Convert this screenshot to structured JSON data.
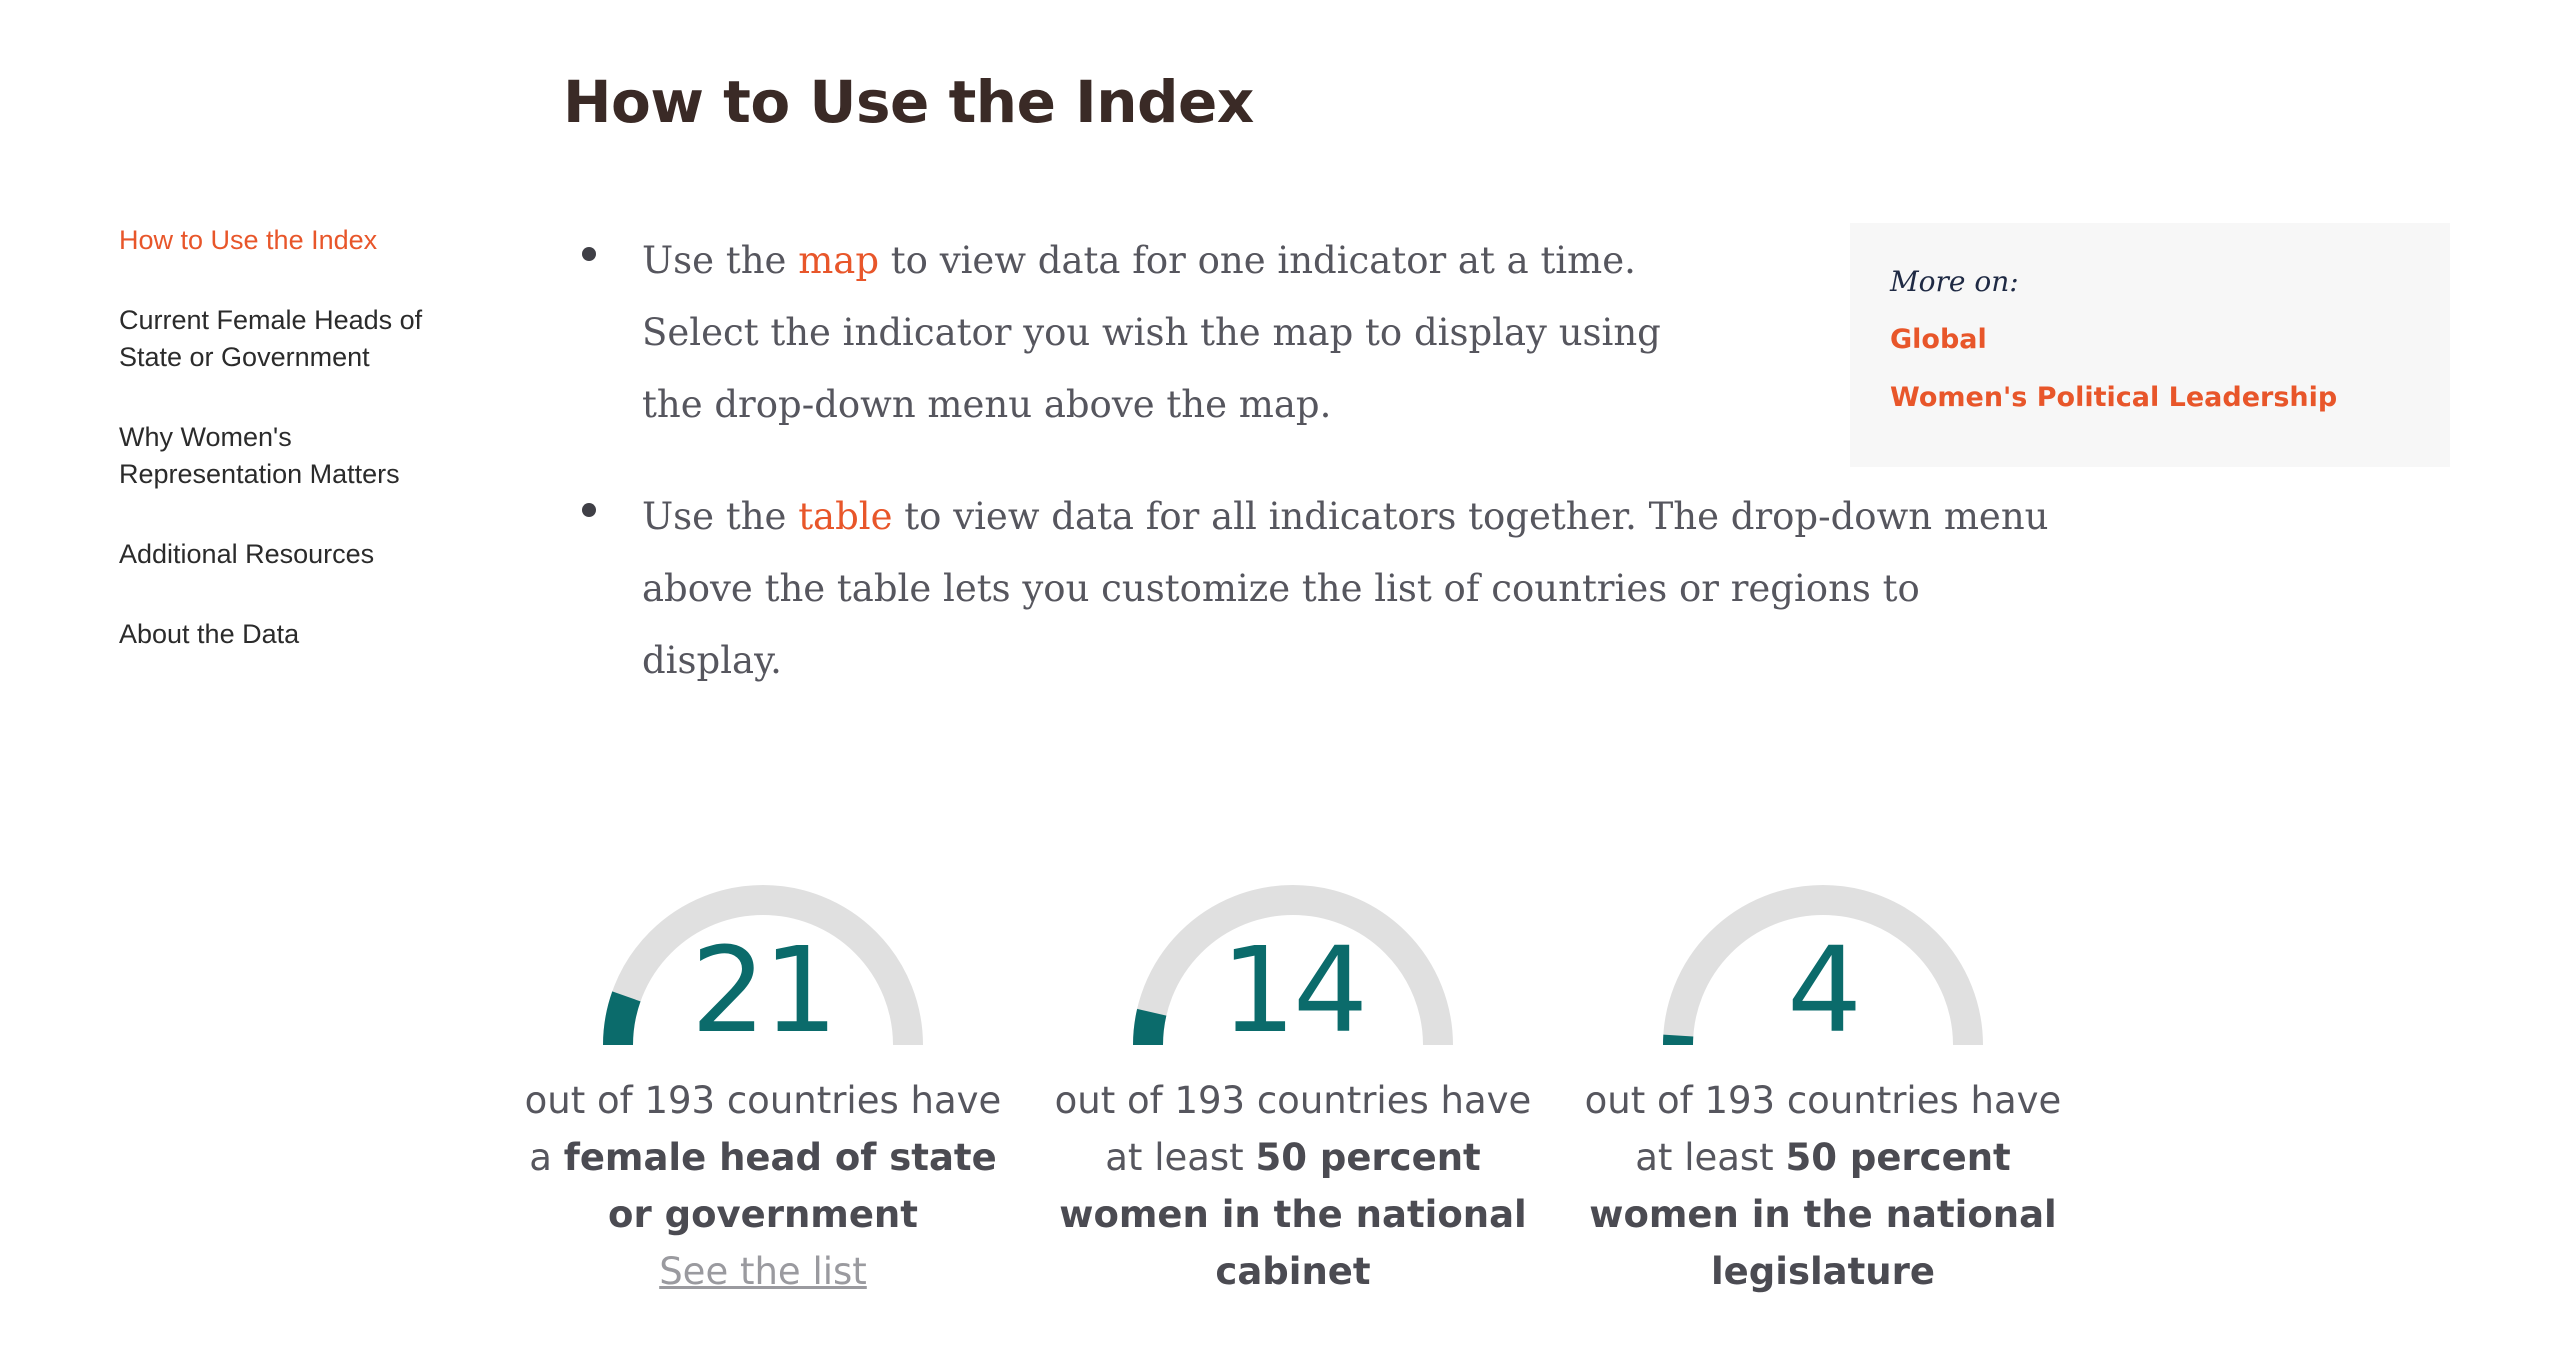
{
  "page": {
    "title": "How to Use the Index"
  },
  "sidebar": {
    "items": [
      {
        "label": "How to Use the Index",
        "active": true
      },
      {
        "label_line1": "Current Female Heads of",
        "label_line2": "State or Government"
      },
      {
        "label_line1": "Why Women's",
        "label_line2": "Representation Matters"
      },
      {
        "label": "Additional Resources"
      },
      {
        "label": "About the Data"
      }
    ]
  },
  "bullets": [
    {
      "before": "Use the ",
      "link": "map",
      "after": " to view data for one indicator at a time. Select the indicator you wish the map to display using the drop-down menu above the map."
    },
    {
      "before": "Use the ",
      "link": "table",
      "after": " to view data for all indicators together. The drop-down menu above the table lets you customize the list of countries or regions to display."
    }
  ],
  "more_on": {
    "label": "More on:",
    "links": [
      "Global",
      "Women's Political Leadership"
    ]
  },
  "stats": [
    {
      "value": 21,
      "total": 193,
      "prefix": "out of 193 countries have",
      "line2_plain": "a ",
      "bold": "female head of state or government",
      "link": "See the list"
    },
    {
      "value": 14,
      "total": 193,
      "prefix": "out of 193 countries have",
      "line2_plain": "at least ",
      "bold": "50 percent women in the national cabinet"
    },
    {
      "value": 4,
      "total": 193,
      "prefix": "out of 193 countries have",
      "line2_plain": "at least ",
      "bold": "50 percent women in the national legislature"
    }
  ],
  "colors": {
    "accent": "#e8562a",
    "gauge_fill": "#0b6b6b",
    "gauge_track": "#e0e0e0",
    "title": "#3a2a26"
  }
}
